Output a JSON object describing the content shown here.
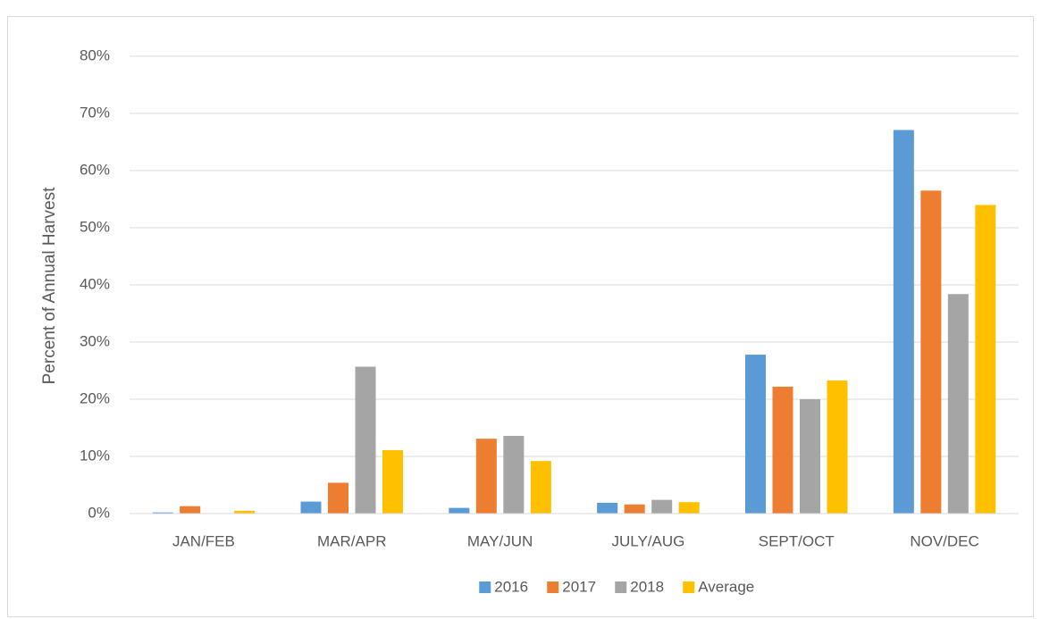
{
  "chart_data": {
    "type": "bar",
    "y_axis_label": "Percent of Annual Harvest",
    "categories": [
      "JAN/FEB",
      "MAR/APR",
      "MAY/JUN",
      "JULY/AUG",
      "SEPT/OCT",
      "NOV/DEC"
    ],
    "series": [
      {
        "name": "2016",
        "color": "#5b9bd5",
        "values": [
          0.2,
          2.1,
          1.0,
          1.9,
          27.8,
          67.1
        ]
      },
      {
        "name": "2017",
        "color": "#ed7d31",
        "values": [
          1.3,
          5.4,
          13.1,
          1.6,
          22.2,
          56.5
        ]
      },
      {
        "name": "2018",
        "color": "#a5a5a5",
        "values": [
          0,
          25.7,
          13.6,
          2.4,
          20.0,
          38.4
        ]
      },
      {
        "name": "Average",
        "color": "#ffc000",
        "values": [
          0.5,
          11.1,
          9.2,
          2.0,
          23.3,
          54.0
        ]
      }
    ],
    "ylim": [
      0,
      80
    ],
    "yticks": [
      {
        "value": 0,
        "label": "0%"
      },
      {
        "value": 10,
        "label": "10%"
      },
      {
        "value": 20,
        "label": "20%"
      },
      {
        "value": 30,
        "label": "30%"
      },
      {
        "value": 40,
        "label": "40%"
      },
      {
        "value": 50,
        "label": "50%"
      },
      {
        "value": 60,
        "label": "60%"
      },
      {
        "value": 70,
        "label": "70%"
      },
      {
        "value": 80,
        "label": "80%"
      }
    ],
    "grid": true,
    "legend_position": "bottom"
  }
}
